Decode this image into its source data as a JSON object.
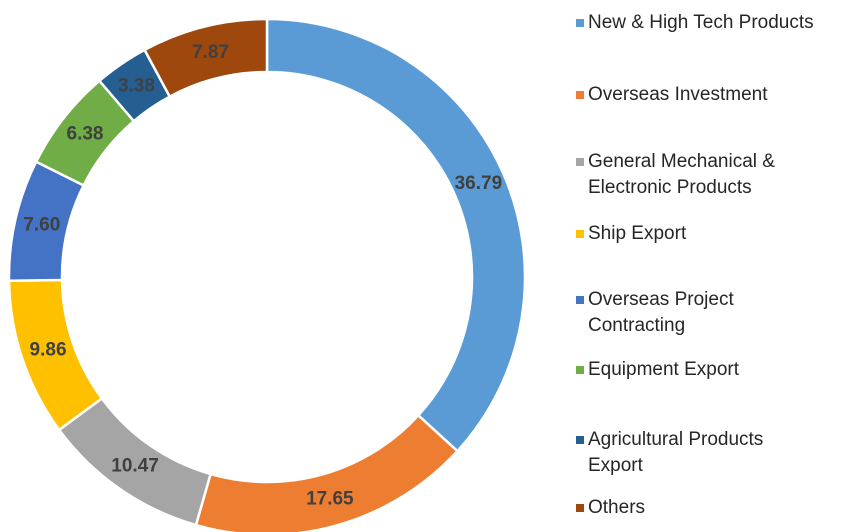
{
  "chart_data": {
    "type": "donut",
    "categories": [
      "New & High Tech Products",
      "Overseas Investment",
      "General Mechanical & Electronic Products",
      "Ship Export",
      "Overseas Project Contracting",
      "Equipment Export",
      "Agricultural Products Export",
      "Others"
    ],
    "series": [
      {
        "values": [
          36.79,
          17.65,
          10.47,
          9.86,
          7.6,
          6.38,
          3.38,
          7.87
        ],
        "value_labels": [
          "36.79",
          "17.65",
          "10.47",
          "9.86",
          "7.60",
          "6.38",
          "3.38",
          "7.87"
        ],
        "colors": [
          "#5b9bd5",
          "#ed7d31",
          "#a5a5a5",
          "#ffc000",
          "#4472c4",
          "#70ad47",
          "#255e91",
          "#9e480e"
        ]
      }
    ],
    "legend": "right"
  }
}
